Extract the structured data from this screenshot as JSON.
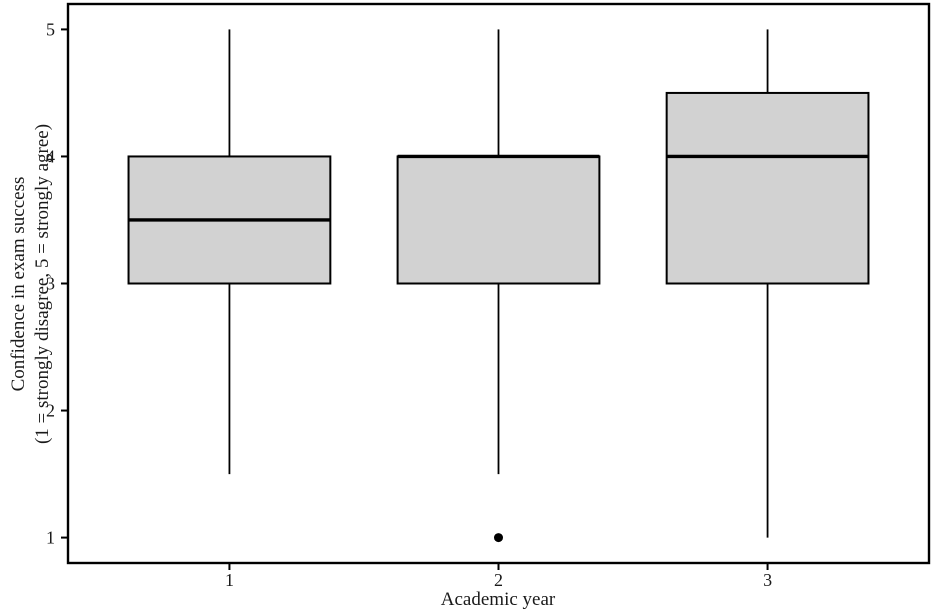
{
  "figure": {
    "background": "#ffffff",
    "stroke_color": "#000000",
    "text_color": "#1a1a1a"
  },
  "chart_data": {
    "type": "boxplot",
    "title": "",
    "xlabel": "Academic year",
    "ylabel_line1": "Confidence in exam success",
    "ylabel_line2": "(1 = strongly disagree, 5 = strongly agree)",
    "categories": [
      "1",
      "2",
      "3"
    ],
    "yticks": [
      "1",
      "2",
      "3",
      "4",
      "5"
    ],
    "ylim": [
      0.8,
      5.2
    ],
    "grid": "off",
    "legend": "none",
    "box_fill": "#d2d2d2",
    "box_stroke": "#000000",
    "outlier_color": "#000000",
    "series": [
      {
        "category": "1",
        "whisker_low": 1.5,
        "q1": 3,
        "median": 3.5,
        "q3": 4,
        "whisker_high": 5,
        "outliers": []
      },
      {
        "category": "2",
        "whisker_low": 1.5,
        "q1": 3,
        "median": 4,
        "q3": 4,
        "whisker_high": 5,
        "outliers": [
          1
        ]
      },
      {
        "category": "3",
        "whisker_low": 1,
        "q1": 3,
        "median": 4,
        "q3": 4.5,
        "whisker_high": 5,
        "outliers": []
      }
    ]
  }
}
